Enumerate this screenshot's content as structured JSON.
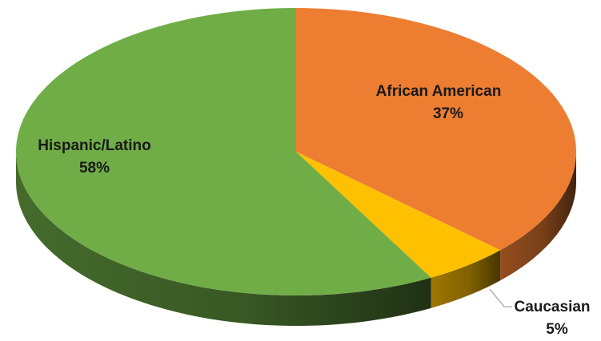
{
  "chart_data": {
    "type": "pie",
    "title": "",
    "categories": [
      "African American",
      "Caucasian",
      "Hispanic/Latino"
    ],
    "values": [
      37,
      5,
      58
    ],
    "value_labels": [
      "37%",
      "5%",
      "58%"
    ],
    "colors": [
      "#ED7D31",
      "#FFC000",
      "#70AD47"
    ],
    "legend": "none",
    "style": "3d-pie"
  }
}
